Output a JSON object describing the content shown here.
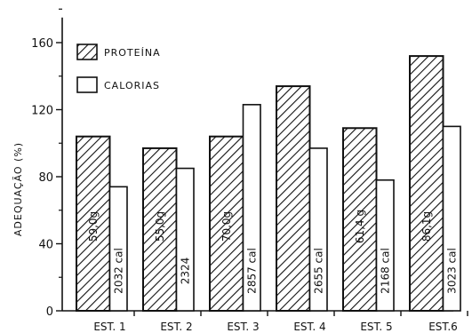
{
  "chart_data": {
    "type": "bar",
    "ylabel": "ADEQUAÇÃO (%)",
    "ylim": [
      0,
      175
    ],
    "yticks": [
      0,
      40,
      80,
      120,
      160
    ],
    "grid": false,
    "legend_position": "top-left",
    "categories": [
      "EST. 1",
      "EST. 2",
      "EST. 3",
      "EST. 4",
      "EST. 5",
      "EST.6"
    ],
    "series": [
      {
        "name": "PROTEÍNA",
        "fill": "hatched",
        "values": [
          104,
          97,
          104,
          134,
          109,
          152
        ],
        "labels": [
          "59,0g",
          "55,0g",
          "70,0g",
          "",
          "61,4 g",
          "86,1g"
        ]
      },
      {
        "name": "CALORIAS",
        "fill": "white",
        "values": [
          74,
          85,
          123,
          97,
          78,
          110
        ],
        "labels": [
          "2032 cal",
          "2324",
          "2857 cal",
          "2655 cal",
          "2168 cal",
          "3023 cal"
        ]
      }
    ]
  }
}
